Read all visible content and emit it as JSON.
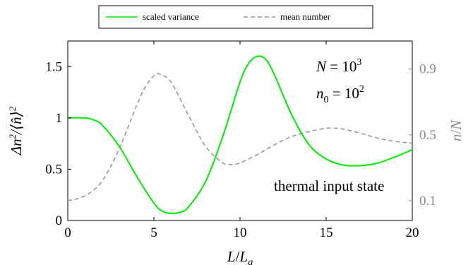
{
  "chart_data": {
    "type": "line",
    "title": "",
    "xlabel": "L/L_g",
    "ylabel_left": "Δn²/⟨n̂⟩²",
    "ylabel_right": "n/N",
    "xlim": [
      0,
      20
    ],
    "ylim_left": [
      0,
      1.75
    ],
    "ylim_right": [
      -0.02,
      1.07
    ],
    "x_ticks": [
      0,
      5,
      10,
      15,
      20
    ],
    "y_ticks_left": [
      0,
      0.5,
      1,
      1.5
    ],
    "y_ticks_right": [
      0.1,
      0.5,
      0.9
    ],
    "legend_position": "top-center",
    "grid": false,
    "annotations": {
      "line1": "N = 10³",
      "line2": "n₀ = 10²",
      "line3": "thermal input state"
    },
    "series": [
      {
        "name": "scaled variance",
        "axis": "left",
        "color": "#00ee00",
        "style": "solid",
        "x": [
          0,
          1,
          1.5,
          2,
          3,
          4,
          5,
          5.5,
          6,
          6.5,
          7,
          8,
          9,
          10,
          10.5,
          11,
          11.5,
          12,
          13,
          14,
          15,
          16,
          17,
          18,
          19,
          20
        ],
        "y": [
          1.0,
          1.0,
          0.98,
          0.93,
          0.72,
          0.43,
          0.17,
          0.09,
          0.07,
          0.08,
          0.13,
          0.38,
          0.82,
          1.35,
          1.53,
          1.6,
          1.57,
          1.42,
          1.03,
          0.74,
          0.6,
          0.54,
          0.535,
          0.56,
          0.62,
          0.69
        ]
      },
      {
        "name": "mean number",
        "axis": "right",
        "color": "#999999",
        "style": "dashed",
        "x": [
          0,
          1,
          2,
          3,
          4,
          4.5,
          5,
          5.3,
          6,
          7,
          8,
          9,
          9.5,
          10,
          11,
          12,
          13,
          14,
          15,
          15.5,
          16,
          17,
          18,
          19,
          20
        ],
        "y": [
          0.1,
          0.13,
          0.22,
          0.42,
          0.68,
          0.79,
          0.86,
          0.87,
          0.82,
          0.62,
          0.43,
          0.33,
          0.32,
          0.33,
          0.38,
          0.44,
          0.49,
          0.52,
          0.54,
          0.54,
          0.535,
          0.51,
          0.48,
          0.46,
          0.45
        ]
      }
    ]
  }
}
